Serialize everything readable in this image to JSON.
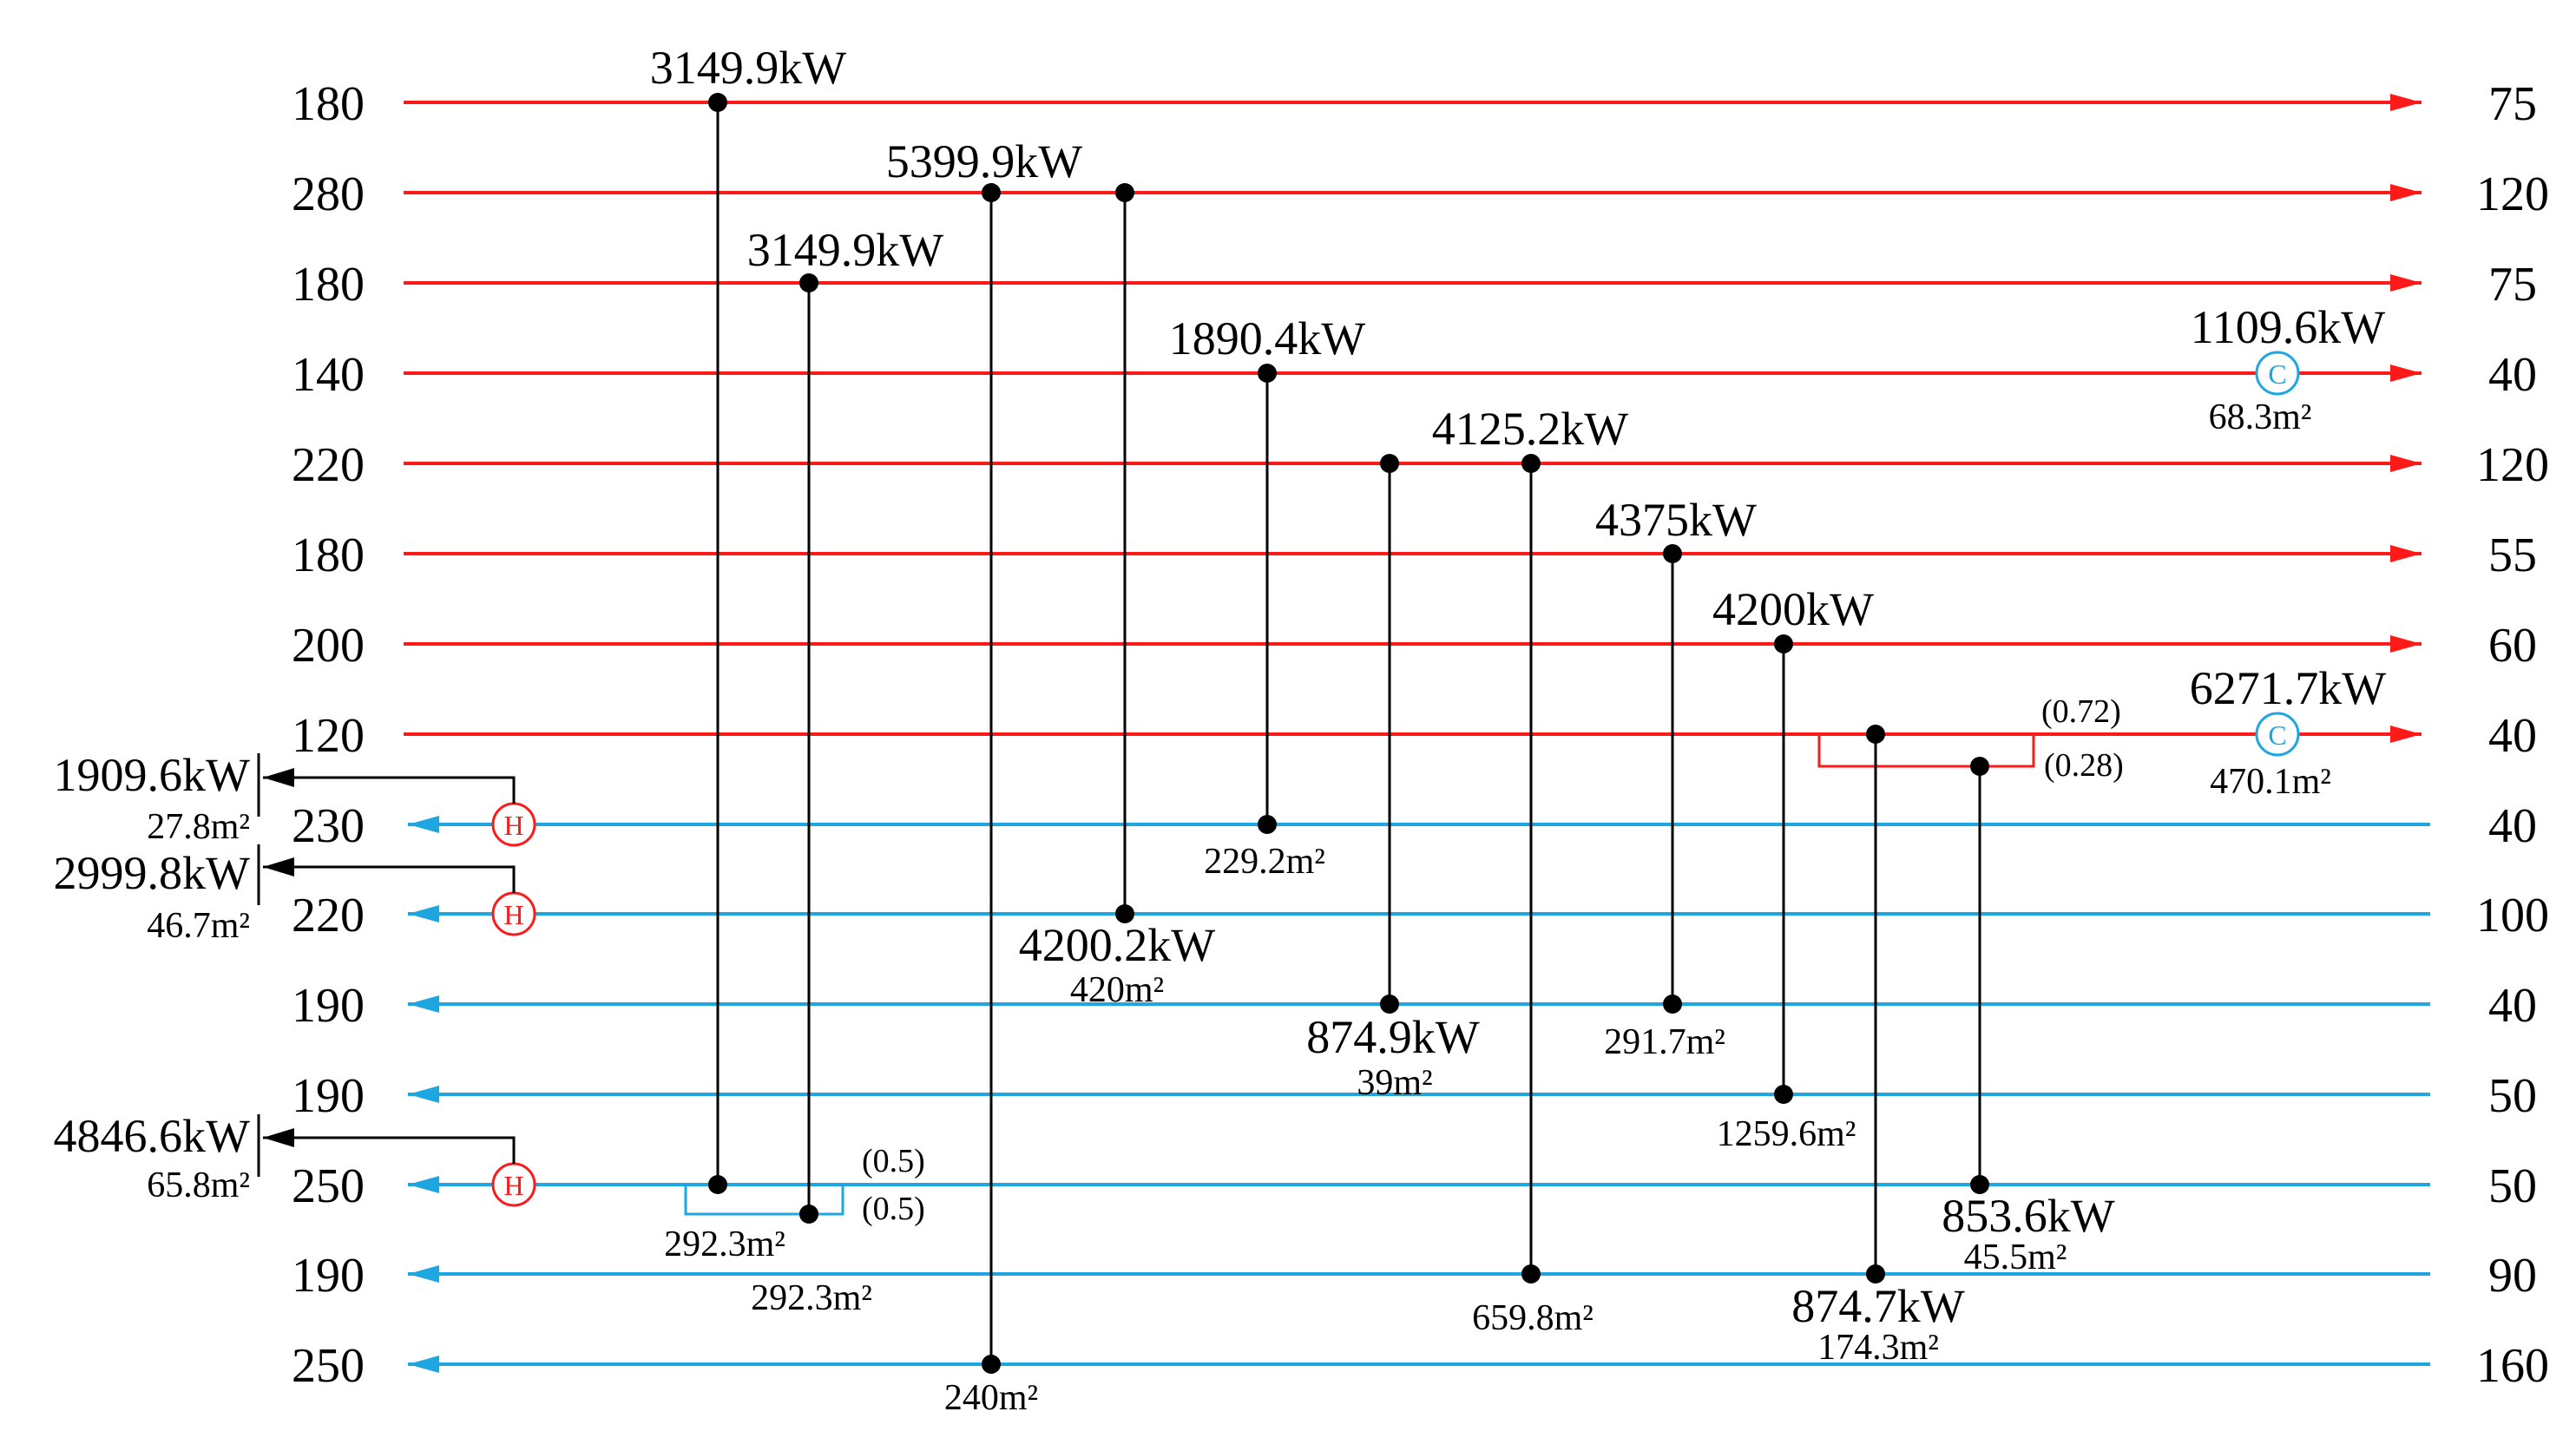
{
  "colors": {
    "hot": "#ff1a1a",
    "cold": "#1ea6e0",
    "match": "#000000",
    "cooler": "#1ea6e0",
    "heater": "#ff1a1a"
  },
  "hot_streams": [
    {
      "t_in": "180",
      "t_out": "75"
    },
    {
      "t_in": "280",
      "t_out": "120"
    },
    {
      "t_in": "180",
      "t_out": "75"
    },
    {
      "t_in": "140",
      "t_out": "40"
    },
    {
      "t_in": "220",
      "t_out": "120"
    },
    {
      "t_in": "180",
      "t_out": "55"
    },
    {
      "t_in": "200",
      "t_out": "60"
    },
    {
      "t_in": "120",
      "t_out": "40"
    }
  ],
  "cold_streams": [
    {
      "t_out": "230",
      "t_in": "40"
    },
    {
      "t_out": "220",
      "t_in": "100"
    },
    {
      "t_out": "190",
      "t_in": "40"
    },
    {
      "t_out": "190",
      "t_in": "50"
    },
    {
      "t_out": "250",
      "t_in": "50"
    },
    {
      "t_out": "190",
      "t_in": "90"
    },
    {
      "t_out": "250",
      "t_in": "160"
    }
  ],
  "matches": [
    {
      "duty": "3149.9kW",
      "area": "292.3m²",
      "hot": 0,
      "cold": 4
    },
    {
      "duty": "3149.9kW",
      "area": "292.3m²",
      "hot": 2,
      "cold": 4
    },
    {
      "duty": "5399.9kW",
      "area": "240m²",
      "hot": 1,
      "cold": 6
    },
    {
      "duty": "4200.2kW",
      "area": "420m²",
      "hot": 1,
      "cold": 1
    },
    {
      "duty": "1890.4kW",
      "area": "229.2m²",
      "hot": 3,
      "cold": 0
    },
    {
      "duty": "4125.2kW",
      "area": "39m²",
      "hot": 4,
      "cold": 2
    },
    {
      "duty": "874.9kW",
      "area": "659.8m²",
      "hot": 4,
      "cold": 5
    },
    {
      "duty": "4375kW",
      "area": "291.7m²",
      "hot": 5,
      "cold": 2
    },
    {
      "duty": "4200kW",
      "area": "1259.6m²",
      "hot": 6,
      "cold": 3
    },
    {
      "duty": "874.7kW",
      "area": "174.3m²",
      "hot": 7,
      "cold": 5
    },
    {
      "duty": "853.6kW",
      "area": "45.5m²",
      "hot": 7,
      "cold": 4
    }
  ],
  "coolers": [
    {
      "duty": "1109.6kW",
      "area": "68.3m²",
      "label": "C"
    },
    {
      "duty": "6271.7kW",
      "area": "470.1m²",
      "label": "C"
    }
  ],
  "heaters": [
    {
      "duty": "1909.6kW",
      "area": "27.8m²",
      "label": "H"
    },
    {
      "duty": "2999.8kW",
      "area": "46.7m²",
      "label": "H"
    },
    {
      "duty": "4846.6kW",
      "area": "65.8m²",
      "label": "H"
    }
  ],
  "splits": {
    "hot_branch_a": "(0.72)",
    "hot_branch_b": "(0.28)",
    "cold_branch_a": "(0.5)",
    "cold_branch_b": "(0.5)"
  }
}
